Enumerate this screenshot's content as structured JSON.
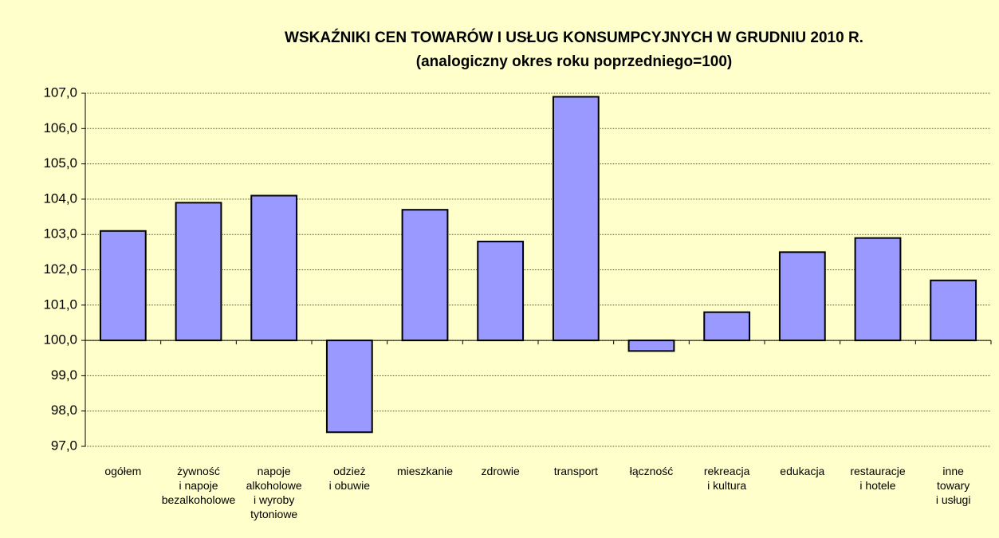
{
  "chart_data": {
    "type": "bar",
    "title": "WSKAŹNIKI CEN TOWARÓW I USŁUG KONSUMPCYJNYCH W GRUDNIU 2010 R.",
    "subtitle": "(analogiczny okres roku poprzedniego=100)",
    "categories": [
      "ogółem",
      "żywność\ni napoje\nbezalkoholowe",
      "napoje\nalkoholowe\ni wyroby\ntytoniowe",
      "odzież\ni obuwie",
      "mieszkanie",
      "zdrowie",
      "transport",
      "łączność",
      "rekreacja\ni kultura",
      "edukacja",
      "restauracje\ni hotele",
      "inne\ntowary\ni usługi"
    ],
    "values": [
      103.1,
      103.9,
      104.1,
      97.4,
      103.7,
      102.8,
      106.9,
      99.7,
      100.8,
      102.5,
      102.9,
      101.7
    ],
    "color": "#9999ff",
    "baseline": 100,
    "ylim": [
      97,
      107
    ],
    "yticks": [
      {
        "value": 97,
        "label": "97,0"
      },
      {
        "value": 98,
        "label": "98,0"
      },
      {
        "value": 99,
        "label": "99,0"
      },
      {
        "value": 100,
        "label": "100,0"
      },
      {
        "value": 101,
        "label": "101,0"
      },
      {
        "value": 102,
        "label": "102,0"
      },
      {
        "value": 103,
        "label": "103,0"
      },
      {
        "value": 104,
        "label": "104,0"
      },
      {
        "value": 105,
        "label": "105,0"
      },
      {
        "value": 106,
        "label": "106,0"
      },
      {
        "value": 107,
        "label": "107,0"
      }
    ],
    "grid": true
  }
}
